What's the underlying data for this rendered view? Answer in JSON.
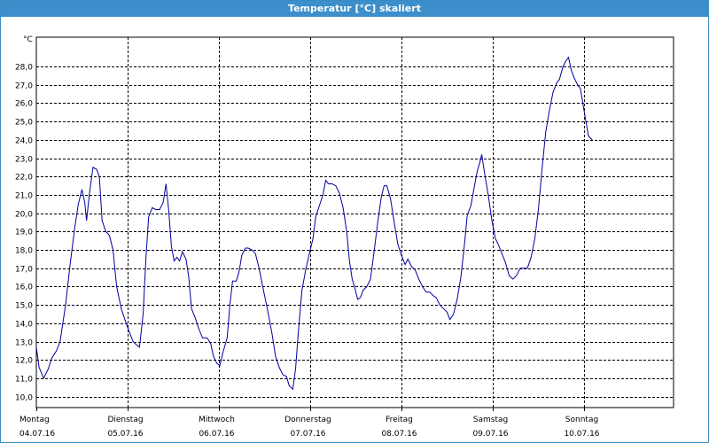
{
  "window": {
    "title": "Temperatur [°C] skaliert"
  },
  "colors": {
    "titlebar": "#3c8fca",
    "series": "#0000a0",
    "grid": "#000000"
  },
  "chart_data": {
    "type": "line",
    "title": "Temperatur [°C] skaliert",
    "ylabel": "°C",
    "xlabel": "",
    "ylim": [
      9.4,
      29.6
    ],
    "xlim": [
      0,
      7
    ],
    "grid": true,
    "y_ticks": [
      "10,0",
      "11,0",
      "12,0",
      "13,0",
      "14,0",
      "15,0",
      "16,0",
      "17,0",
      "18,0",
      "19,0",
      "20,0",
      "21,0",
      "22,0",
      "23,0",
      "24,0",
      "25,0",
      "26,0",
      "27,0",
      "28,0"
    ],
    "x_labels": [
      {
        "day": "Montag",
        "date": "04.07.16"
      },
      {
        "day": "Dienstag",
        "date": "05.07.16"
      },
      {
        "day": "Mittwoch",
        "date": "06.07.16"
      },
      {
        "day": "Donnerstag",
        "date": "07.07.16"
      },
      {
        "day": "Freitag",
        "date": "08.07.16"
      },
      {
        "day": "Samstag",
        "date": "09.07.16"
      },
      {
        "day": "Sonntag",
        "date": "10.07.16"
      }
    ],
    "x_unit": "days since 04.07.16 00:00",
    "series": [
      {
        "values": [
          [
            0.0,
            12.7
          ],
          [
            0.03,
            11.6
          ],
          [
            0.08,
            11.0
          ],
          [
            0.13,
            11.5
          ],
          [
            0.17,
            12.1
          ],
          [
            0.22,
            12.5
          ],
          [
            0.26,
            13.0
          ],
          [
            0.32,
            15.0
          ],
          [
            0.37,
            17.2
          ],
          [
            0.42,
            19.2
          ],
          [
            0.46,
            20.5
          ],
          [
            0.5,
            21.3
          ],
          [
            0.53,
            20.6
          ],
          [
            0.55,
            19.6
          ],
          [
            0.58,
            21.0
          ],
          [
            0.62,
            22.5
          ],
          [
            0.66,
            22.4
          ],
          [
            0.69,
            22.0
          ],
          [
            0.72,
            19.6
          ],
          [
            0.76,
            19.0
          ],
          [
            0.8,
            18.8
          ],
          [
            0.84,
            18.0
          ],
          [
            0.88,
            16.0
          ],
          [
            0.93,
            14.8
          ],
          [
            0.97,
            14.2
          ],
          [
            1.02,
            13.5
          ],
          [
            1.06,
            13.0
          ],
          [
            1.1,
            12.8
          ],
          [
            1.13,
            12.7
          ],
          [
            1.17,
            14.5
          ],
          [
            1.2,
            17.5
          ],
          [
            1.23,
            19.8
          ],
          [
            1.27,
            20.3
          ],
          [
            1.31,
            20.2
          ],
          [
            1.35,
            20.2
          ],
          [
            1.39,
            20.6
          ],
          [
            1.42,
            21.6
          ],
          [
            1.45,
            20.2
          ],
          [
            1.48,
            18.2
          ],
          [
            1.51,
            17.4
          ],
          [
            1.54,
            17.6
          ],
          [
            1.57,
            17.4
          ],
          [
            1.6,
            17.9
          ],
          [
            1.64,
            17.5
          ],
          [
            1.67,
            16.5
          ],
          [
            1.7,
            14.8
          ],
          [
            1.74,
            14.3
          ],
          [
            1.78,
            13.7
          ],
          [
            1.82,
            13.2
          ],
          [
            1.87,
            13.2
          ],
          [
            1.91,
            12.9
          ],
          [
            1.94,
            12.2
          ],
          [
            1.98,
            11.8
          ],
          [
            2.01,
            11.7
          ],
          [
            2.05,
            12.5
          ],
          [
            2.09,
            13.2
          ],
          [
            2.12,
            15.0
          ],
          [
            2.15,
            16.3
          ],
          [
            2.19,
            16.3
          ],
          [
            2.22,
            16.8
          ],
          [
            2.25,
            17.7
          ],
          [
            2.29,
            18.1
          ],
          [
            2.32,
            18.1
          ],
          [
            2.36,
            18.0
          ],
          [
            2.4,
            17.8
          ],
          [
            2.44,
            17.0
          ],
          [
            2.48,
            16.0
          ],
          [
            2.53,
            14.8
          ],
          [
            2.58,
            13.5
          ],
          [
            2.62,
            12.2
          ],
          [
            2.66,
            11.6
          ],
          [
            2.7,
            11.2
          ],
          [
            2.74,
            11.1
          ],
          [
            2.77,
            10.6
          ],
          [
            2.81,
            10.4
          ],
          [
            2.84,
            11.5
          ],
          [
            2.87,
            13.5
          ],
          [
            2.91,
            15.8
          ],
          [
            2.95,
            16.9
          ],
          [
            2.99,
            17.8
          ],
          [
            3.03,
            18.6
          ],
          [
            3.06,
            19.8
          ],
          [
            3.1,
            20.4
          ],
          [
            3.14,
            21.0
          ],
          [
            3.17,
            21.8
          ],
          [
            3.2,
            21.6
          ],
          [
            3.24,
            21.6
          ],
          [
            3.28,
            21.5
          ],
          [
            3.32,
            21.1
          ],
          [
            3.36,
            20.3
          ],
          [
            3.4,
            19.0
          ],
          [
            3.43,
            17.4
          ],
          [
            3.46,
            16.4
          ],
          [
            3.49,
            15.9
          ],
          [
            3.52,
            15.3
          ],
          [
            3.55,
            15.4
          ],
          [
            3.58,
            15.8
          ],
          [
            3.62,
            16.0
          ],
          [
            3.66,
            16.4
          ],
          [
            3.7,
            17.9
          ],
          [
            3.74,
            19.5
          ],
          [
            3.78,
            20.9
          ],
          [
            3.81,
            21.5
          ],
          [
            3.84,
            21.5
          ],
          [
            3.88,
            20.8
          ],
          [
            3.92,
            19.5
          ],
          [
            3.96,
            18.3
          ],
          [
            4.0,
            17.7
          ],
          [
            4.04,
            17.2
          ],
          [
            4.07,
            17.5
          ],
          [
            4.11,
            17.1
          ],
          [
            4.15,
            16.9
          ],
          [
            4.19,
            16.4
          ],
          [
            4.23,
            16.0
          ],
          [
            4.27,
            15.7
          ],
          [
            4.31,
            15.7
          ],
          [
            4.35,
            15.5
          ],
          [
            4.38,
            15.4
          ],
          [
            4.42,
            15.0
          ],
          [
            4.46,
            14.8
          ],
          [
            4.5,
            14.6
          ],
          [
            4.53,
            14.2
          ],
          [
            4.57,
            14.5
          ],
          [
            4.61,
            15.3
          ],
          [
            4.65,
            16.5
          ],
          [
            4.69,
            18.3
          ],
          [
            4.72,
            19.9
          ],
          [
            4.76,
            20.4
          ],
          [
            4.8,
            21.5
          ],
          [
            4.83,
            22.3
          ],
          [
            4.86,
            22.8
          ],
          [
            4.88,
            23.2
          ],
          [
            4.91,
            22.2
          ],
          [
            4.95,
            21.0
          ],
          [
            4.99,
            19.6
          ],
          [
            5.03,
            18.6
          ],
          [
            5.06,
            18.3
          ],
          [
            5.1,
            17.8
          ],
          [
            5.14,
            17.3
          ],
          [
            5.18,
            16.6
          ],
          [
            5.22,
            16.4
          ],
          [
            5.26,
            16.6
          ],
          [
            5.3,
            17.0
          ],
          [
            5.34,
            17.0
          ],
          [
            5.38,
            17.0
          ],
          [
            5.42,
            17.6
          ],
          [
            5.46,
            18.6
          ],
          [
            5.5,
            20.2
          ],
          [
            5.54,
            22.4
          ],
          [
            5.58,
            24.4
          ],
          [
            5.62,
            25.6
          ],
          [
            5.66,
            26.6
          ],
          [
            5.7,
            27.1
          ],
          [
            5.73,
            27.3
          ],
          [
            5.77,
            28.0
          ],
          [
            5.8,
            28.3
          ],
          [
            5.83,
            28.5
          ],
          [
            5.86,
            27.8
          ],
          [
            5.89,
            27.4
          ],
          [
            5.93,
            27.0
          ],
          [
            5.96,
            26.8
          ],
          [
            5.99,
            25.9
          ],
          [
            6.02,
            25.0
          ],
          [
            6.05,
            24.2
          ],
          [
            6.09,
            24.0
          ]
        ]
      }
    ]
  }
}
